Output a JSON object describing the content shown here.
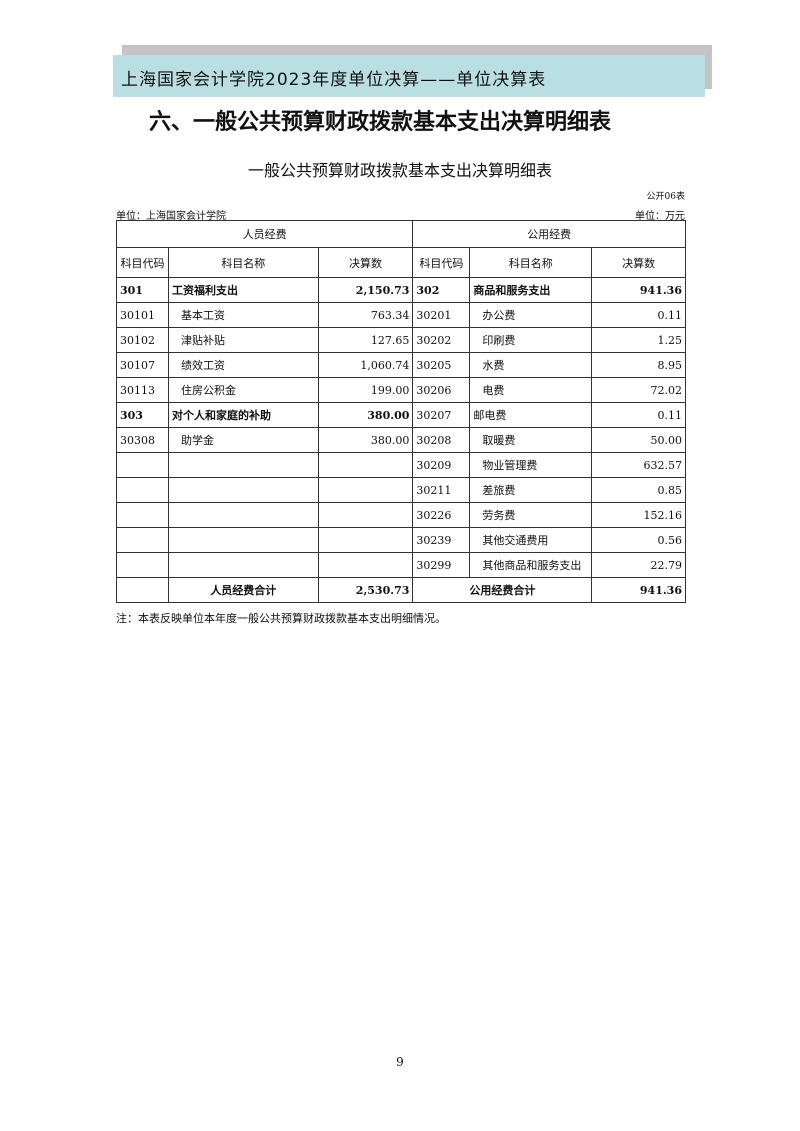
{
  "header": {
    "banner": "上海国家会计学院2023年度单位决算——单位决算表",
    "section_title": "六、一般公共预算财政拨款基本支出决算明细表"
  },
  "table_title": "一般公共预算财政拨款基本支出决算明细表",
  "form_code": "公开06表",
  "unit_left": "单位：上海国家会计学院",
  "unit_right": "单位：万元",
  "groups": {
    "left": "人员经费",
    "right": "公用经费"
  },
  "columns": [
    "科目代码",
    "科目名称",
    "决算数",
    "科目代码",
    "科目名称",
    "决算数"
  ],
  "rows": [
    [
      "301",
      "工资福利支出",
      "2,150.73",
      "302",
      "商品和服务支出",
      "941.36"
    ],
    [
      "30101",
      "基本工资",
      "763.34",
      "30201",
      "办公费",
      "0.11"
    ],
    [
      "30102",
      "津贴补贴",
      "127.65",
      "30202",
      "印刷费",
      "1.25"
    ],
    [
      "30107",
      "绩效工资",
      "1,060.74",
      "30205",
      "水费",
      "8.95"
    ],
    [
      "30113",
      "住房公积金",
      "199.00",
      "30206",
      "电费",
      "72.02"
    ],
    [
      "303",
      "对个人和家庭的补助",
      "380.00",
      "30207",
      "邮电费",
      "0.11"
    ],
    [
      "30308",
      "助学金",
      "380.00",
      "30208",
      "取暖费",
      "50.00"
    ],
    [
      "",
      "",
      "",
      "30209",
      "物业管理费",
      "632.57"
    ],
    [
      "",
      "",
      "",
      "30211",
      "差旅费",
      "0.85"
    ],
    [
      "",
      "",
      "",
      "30226",
      "劳务费",
      "152.16"
    ],
    [
      "",
      "",
      "",
      "30239",
      "其他交通费用",
      "0.56"
    ],
    [
      "",
      "",
      "",
      "30299",
      "其他商品和服务支出",
      "22.79"
    ]
  ],
  "totals": {
    "left_label": "人员经费合计",
    "left_value": "2,530.73",
    "right_label": "公用经费合计",
    "right_value": "941.36"
  },
  "note": "注：本表反映单位本年度一般公共预算财政拨款基本支出明细情况。",
  "page_number": "9"
}
